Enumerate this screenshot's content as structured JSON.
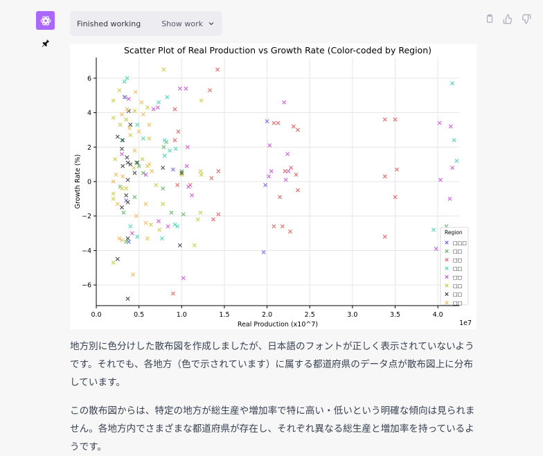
{
  "status": {
    "label": "Finished working",
    "show_work": "Show work"
  },
  "icons": {
    "avatar": "openai-logo-icon",
    "pin": "pin-icon",
    "copy": "copy-icon",
    "thumbs_up": "thumbs-up-icon",
    "thumbs_down": "thumbs-down-icon",
    "chevron": "chevron-down-icon"
  },
  "colors": {
    "avatar_bg": "#ab68ff",
    "page_bg": "#f7f7f8"
  },
  "chart_data": {
    "type": "scatter",
    "title": "Scatter Plot of Real Production vs Growth Rate (Color-coded by Region)",
    "xlabel": "Real Production (x10^7)",
    "ylabel": "Growth Rate (%)",
    "x_offset_label": "1e7",
    "xlim": [
      0,
      4.25
    ],
    "ylim": [
      -7.2,
      7.2
    ],
    "x_ticks": [
      0.0,
      0.5,
      1.0,
      1.5,
      2.0,
      2.5,
      3.0,
      3.5,
      4.0
    ],
    "x_tick_labels": [
      "0.0",
      "0.5",
      "1.0",
      "1.5",
      "2.0",
      "2.5",
      "3.0",
      "3.5",
      "4.0"
    ],
    "y_ticks": [
      -6,
      -4,
      -2,
      0,
      2,
      4,
      6
    ],
    "y_tick_labels": [
      "−6",
      "−4",
      "−2",
      "0",
      "2",
      "4",
      "6"
    ],
    "grid": true,
    "marker": "x",
    "legend": {
      "title": "Region",
      "placement": "lower-right"
    },
    "series": [
      {
        "name": "□□□",
        "color": "#6c5ce7",
        "points": [
          [
            2.0,
            3.5
          ],
          [
            1.98,
            -0.2
          ],
          [
            1.96,
            -4.1
          ],
          [
            0.38,
            -3.5
          ],
          [
            0.35,
            -1.1
          ],
          [
            0.9,
            0.7
          ]
        ]
      },
      {
        "name": "□□",
        "color": "#59b25f",
        "points": [
          [
            0.28,
            -0.3
          ],
          [
            0.32,
            -1.8
          ],
          [
            0.35,
            -3.5
          ],
          [
            0.45,
            -0.9
          ],
          [
            0.5,
            0.9
          ],
          [
            0.55,
            0.5
          ],
          [
            0.78,
            -0.4
          ],
          [
            0.82,
            2.3
          ],
          [
            0.88,
            -1.8
          ],
          [
            1.0,
            0.6
          ],
          [
            1.02,
            -1.9
          ],
          [
            4.1,
            -2.6
          ],
          [
            0.47,
            1.1
          ],
          [
            0.79,
            2.0
          ]
        ]
      },
      {
        "name": "□□",
        "color": "#e15759",
        "points": [
          [
            0.9,
            -6.5
          ],
          [
            0.92,
            4.2
          ],
          [
            0.96,
            2.9
          ],
          [
            0.95,
            -0.2
          ],
          [
            1.1,
            -0.2
          ],
          [
            1.33,
            5.3
          ],
          [
            1.42,
            6.5
          ],
          [
            1.43,
            -1.9
          ],
          [
            1.43,
            0.6
          ],
          [
            2.08,
            3.4
          ],
          [
            2.13,
            3.4
          ],
          [
            2.21,
            0.6
          ],
          [
            2.31,
            3.2
          ],
          [
            2.36,
            3.0
          ],
          [
            2.34,
            0.4
          ],
          [
            2.36,
            -0.5
          ],
          [
            2.08,
            -2.6
          ],
          [
            2.18,
            -2.6
          ],
          [
            2.27,
            -2.9
          ],
          [
            3.38,
            3.6
          ],
          [
            3.5,
            3.6
          ],
          [
            3.52,
            0.7
          ],
          [
            3.5,
            -0.9
          ],
          [
            3.38,
            -3.2
          ],
          [
            3.38,
            0.3
          ],
          [
            0.92,
            2.4
          ],
          [
            1.37,
            -2.2
          ],
          [
            2.15,
            -0.9
          ],
          [
            2.28,
            0.8
          ],
          [
            1.35,
            0.2
          ]
        ]
      },
      {
        "name": "□□",
        "color": "#3fd3b2",
        "points": [
          [
            0.33,
            5.8
          ],
          [
            0.36,
            6.0
          ],
          [
            0.34,
            4.9
          ],
          [
            0.3,
            2.4
          ],
          [
            0.48,
            3.3
          ],
          [
            0.55,
            2.5
          ],
          [
            0.8,
            2.4
          ],
          [
            0.86,
            1.8
          ],
          [
            0.93,
            1.9
          ],
          [
            0.8,
            1.5
          ],
          [
            0.92,
            -2.5
          ],
          [
            0.77,
            -3.3
          ],
          [
            0.95,
            -2.6
          ],
          [
            0.48,
            -3.2
          ],
          [
            0.4,
            -2.6
          ],
          [
            4.17,
            5.7
          ],
          [
            4.19,
            2.4
          ],
          [
            4.22,
            1.2
          ],
          [
            3.95,
            -2.8
          ],
          [
            0.83,
            4.9
          ],
          [
            0.73,
            4.6
          ]
        ]
      },
      {
        "name": "□□",
        "color": "#c84dd6",
        "points": [
          [
            0.33,
            4.9
          ],
          [
            0.38,
            4.8
          ],
          [
            0.67,
            4.2
          ],
          [
            0.72,
            4.3
          ],
          [
            0.98,
            5.4
          ],
          [
            1.05,
            5.4
          ],
          [
            1.07,
            2.0
          ],
          [
            1.06,
            0.9
          ],
          [
            0.84,
            -2.6
          ],
          [
            0.73,
            -2.3
          ],
          [
            1.02,
            -5.6
          ],
          [
            1.08,
            -0.3
          ],
          [
            2.03,
            2.1
          ],
          [
            2.05,
            0.6
          ],
          [
            2.2,
            4.6
          ],
          [
            2.24,
            1.6
          ],
          [
            2.22,
            0.1
          ],
          [
            2.25,
            0.6
          ],
          [
            2.02,
            0.3
          ],
          [
            0.58,
            0.4
          ],
          [
            0.42,
            -3.0
          ],
          [
            4.02,
            3.4
          ],
          [
            4.15,
            3.2
          ],
          [
            4.17,
            0.8
          ],
          [
            4.14,
            -1.0
          ],
          [
            4.03,
            0.1
          ],
          [
            3.98,
            -3.9
          ],
          [
            0.3,
            1.6
          ],
          [
            1.12,
            -0.8
          ]
        ]
      },
      {
        "name": "□□",
        "color": "#c8c83a",
        "points": [
          [
            0.2,
            4.7
          ],
          [
            0.27,
            5.3
          ],
          [
            0.2,
            3.7
          ],
          [
            0.35,
            3.6
          ],
          [
            0.45,
            4.1
          ],
          [
            0.6,
            4.3
          ],
          [
            0.79,
            6.5
          ],
          [
            1.23,
            4.7
          ],
          [
            1.22,
            0.6
          ],
          [
            1.23,
            0.4
          ],
          [
            1.22,
            -1.8
          ],
          [
            1.19,
            -2.2
          ],
          [
            1.15,
            -3.7
          ],
          [
            0.2,
            -0.7
          ],
          [
            0.2,
            -1.0
          ],
          [
            0.3,
            -0.4
          ],
          [
            0.35,
            -0.4
          ],
          [
            0.64,
            -2.5
          ],
          [
            0.7,
            -0.2
          ],
          [
            0.2,
            -4.7
          ],
          [
            0.22,
            1.3
          ],
          [
            0.44,
            0.8
          ],
          [
            0.6,
            0.9
          ],
          [
            0.62,
            2.5
          ],
          [
            0.74,
            -2.8
          ],
          [
            0.78,
            -1.3
          ],
          [
            0.28,
            3.3
          ],
          [
            0.4,
            2.7
          ],
          [
            0.54,
            1.3
          ],
          [
            1.0,
            0.4
          ]
        ]
      },
      {
        "name": "□□",
        "color": "#3a3a3a",
        "points": [
          [
            0.25,
            2.6
          ],
          [
            0.31,
            2.4
          ],
          [
            0.3,
            1.9
          ],
          [
            0.36,
            1.4
          ],
          [
            0.37,
            1.1
          ],
          [
            0.4,
            1.0
          ],
          [
            0.45,
            0.5
          ],
          [
            0.48,
            1.1
          ],
          [
            0.37,
            0.1
          ],
          [
            0.35,
            -0.8
          ],
          [
            0.3,
            -1.5
          ],
          [
            0.37,
            -1.2
          ],
          [
            0.37,
            -3.3
          ],
          [
            0.25,
            -4.5
          ],
          [
            0.37,
            -6.8
          ],
          [
            0.38,
            4.1
          ],
          [
            0.4,
            3.3
          ],
          [
            0.31,
            0.9
          ],
          [
            0.98,
            -3.7
          ],
          [
            0.78,
            0.8
          ],
          [
            1.0,
            0.5
          ]
        ]
      },
      {
        "name": "□□",
        "color": "#f0b74f",
        "points": [
          [
            0.25,
            -1.3
          ],
          [
            0.3,
            3.9
          ],
          [
            0.31,
            0.3
          ],
          [
            0.36,
            4.2
          ],
          [
            0.39,
            3.1
          ],
          [
            0.46,
            5.2
          ],
          [
            0.53,
            4.6
          ],
          [
            0.55,
            3.9
          ],
          [
            0.62,
            3.3
          ],
          [
            0.65,
            0.6
          ],
          [
            0.62,
            1.0
          ],
          [
            0.47,
            -2.0
          ],
          [
            0.58,
            -2.4
          ],
          [
            0.6,
            -3.3
          ],
          [
            0.43,
            -5.4
          ],
          [
            0.2,
            0.0
          ],
          [
            0.23,
            0.4
          ],
          [
            0.27,
            -3.3
          ],
          [
            0.45,
            1.8
          ],
          [
            0.58,
            -1.3
          ],
          [
            0.3,
            -3.4
          ],
          [
            0.5,
            2.9
          ]
        ]
      }
    ]
  },
  "paragraphs": [
    "地方別に色分けした散布図を作成しましたが、日本語のフォントが正しく表示されていないようです。それでも、各地方（色で示されています）に属する都道府県のデータ点が散布図上に分布しています。",
    "この散布図からは、特定の地方が総生産や増加率で特に高い・低いという明確な傾向は見られません。各地方内でさまざまな都道府県が存在し、それぞれ異なる総生産と増加率を持っているようです。"
  ]
}
